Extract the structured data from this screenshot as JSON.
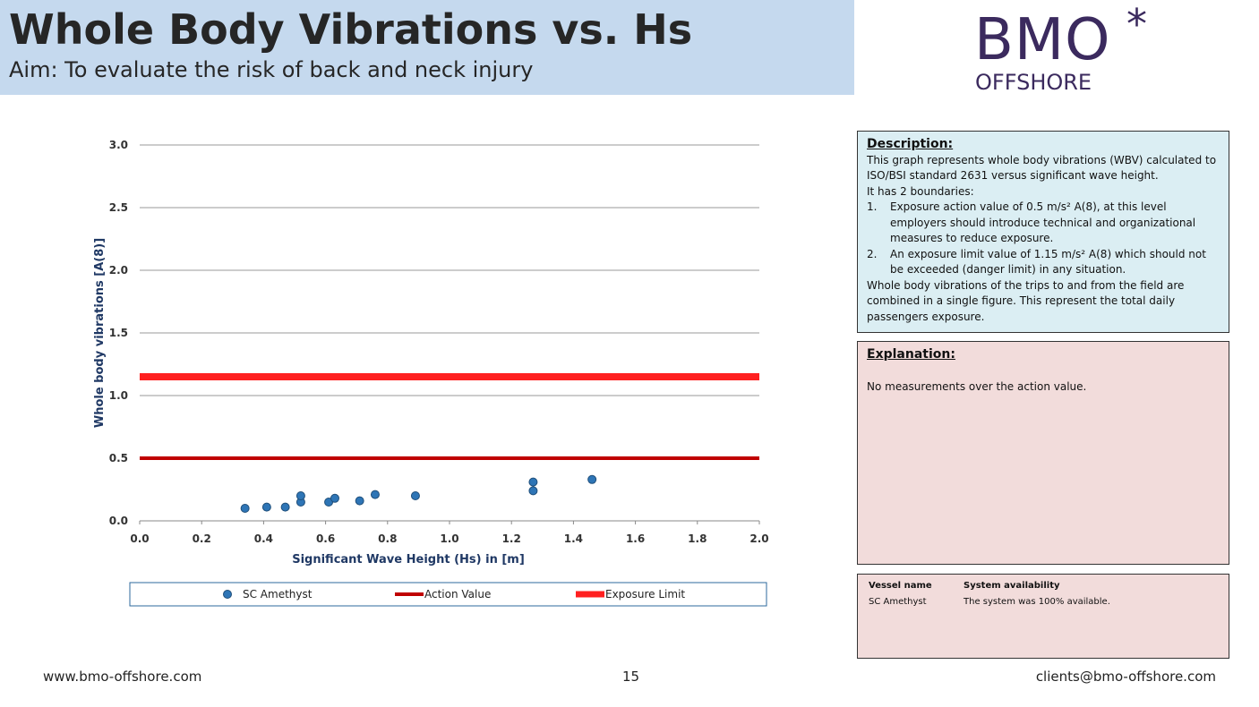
{
  "header": {
    "title": "Whole Body Vibrations vs. Hs",
    "subtitle": "Aim: To evaluate the risk of back and neck injury"
  },
  "logo": {
    "main": "BMO",
    "star": "*",
    "sub": "OFFSHORE"
  },
  "chart_data": {
    "type": "scatter",
    "x_label": "Significant Wave Height (Hs) in [m]",
    "y_label": "Whole body vibrations [A(8)]",
    "xlim": [
      0,
      2
    ],
    "ylim": [
      0,
      3
    ],
    "xticks": [
      {
        "value": 0,
        "label": "0.0"
      },
      0.2,
      0.4,
      0.6,
      0.8,
      {
        "value": 1,
        "label": "1.0"
      },
      1.2,
      1.4,
      1.6,
      1.8,
      {
        "value": 2,
        "label": "2.0"
      }
    ],
    "yticks": [
      {
        "value": 0,
        "label": "0.0"
      },
      0.5,
      {
        "value": 1,
        "label": "1.0"
      },
      1.5,
      {
        "value": 2,
        "label": "2.0"
      },
      2.5,
      {
        "value": 3,
        "label": "3.0"
      }
    ],
    "grid": true,
    "series": [
      {
        "name": "SC Amethyst",
        "type": "scatter",
        "color": "#2e75b6",
        "x": [
          0.34,
          0.41,
          0.47,
          0.52,
          0.52,
          0.61,
          0.63,
          0.71,
          0.76,
          0.89,
          1.27,
          1.27,
          1.46
        ],
        "values": [
          0.1,
          0.11,
          0.11,
          0.15,
          0.2,
          0.15,
          0.18,
          0.16,
          0.21,
          0.2,
          0.31,
          0.24,
          0.33
        ]
      },
      {
        "name": "Action Value",
        "type": "line",
        "color": "#c00000",
        "x": [
          0,
          2
        ],
        "values": [
          0.5,
          0.5
        ]
      },
      {
        "name": "Exposure Limit",
        "type": "line",
        "color": "#ff2020",
        "x": [
          0,
          2
        ],
        "values": [
          1.15,
          1.15
        ]
      }
    ]
  },
  "description": {
    "title": "Description:",
    "intro": [
      "This graph represents whole body vibrations (WBV) calculated to ISO/BSI standard 2631 versus significant wave height.",
      "It has 2 boundaries:"
    ],
    "items": [
      {
        "marker": "1.",
        "text": "Exposure action value of 0.5 m/s² A(8), at this level employers should introduce technical and organizational measures to reduce exposure."
      },
      {
        "marker": "2.",
        "text": "An exposure limit value of 1.15 m/s² A(8) which should not be exceeded (danger limit) in any situation."
      }
    ],
    "outro": "Whole body vibrations of the trips to and from the field are combined in a single figure. This represent the total daily passengers exposure."
  },
  "explanation": {
    "title": "Explanation:",
    "text": "No measurements over the action value."
  },
  "table": {
    "header": [
      "Vessel name",
      "System availability"
    ],
    "rows": [
      [
        "SC Amethyst",
        "The system was 100% available."
      ]
    ]
  },
  "footer": {
    "left": "www.bmo-offshore.com",
    "center": "15",
    "right": "clients@bmo-offshore.com"
  }
}
